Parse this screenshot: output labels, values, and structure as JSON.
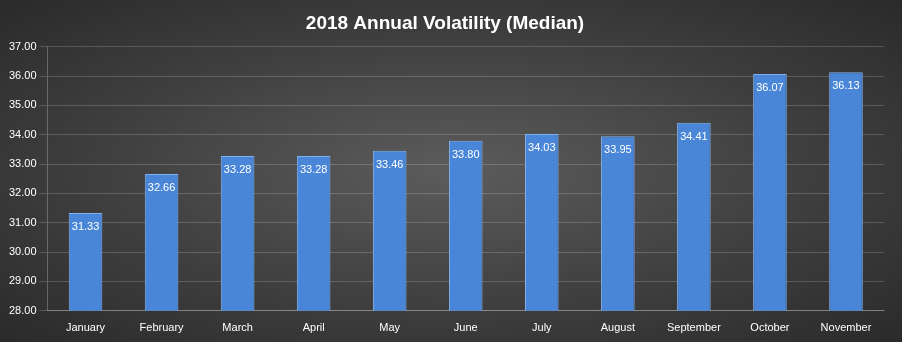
{
  "chart_data": {
    "type": "bar",
    "title": "2018 Annual Volatility (Median)",
    "categories": [
      "January",
      "February",
      "March",
      "April",
      "May",
      "June",
      "July",
      "August",
      "September",
      "October",
      "November"
    ],
    "values": [
      31.33,
      32.66,
      33.28,
      33.28,
      33.46,
      33.8,
      34.03,
      33.95,
      34.41,
      36.07,
      36.13
    ],
    "value_labels": [
      "31.33",
      "32.66",
      "33.28",
      "33.28",
      "33.46",
      "33.80",
      "34.03",
      "33.95",
      "34.41",
      "36.07",
      "36.13"
    ],
    "color": "#4a86d8",
    "ylim": [
      28,
      37
    ],
    "yticks": [
      {
        "value": 28,
        "label": "28.00"
      },
      {
        "value": 29,
        "label": "29.00"
      },
      {
        "value": 30,
        "label": "30.00"
      },
      {
        "value": 31,
        "label": "31.00"
      },
      {
        "value": 32,
        "label": "32.00"
      },
      {
        "value": 33,
        "label": "33.00"
      },
      {
        "value": 34,
        "label": "34.00"
      },
      {
        "value": 35,
        "label": "35.00"
      },
      {
        "value": 36,
        "label": "36.00"
      },
      {
        "value": 37,
        "label": "37.00"
      }
    ],
    "grid": true,
    "data_labels": true
  }
}
